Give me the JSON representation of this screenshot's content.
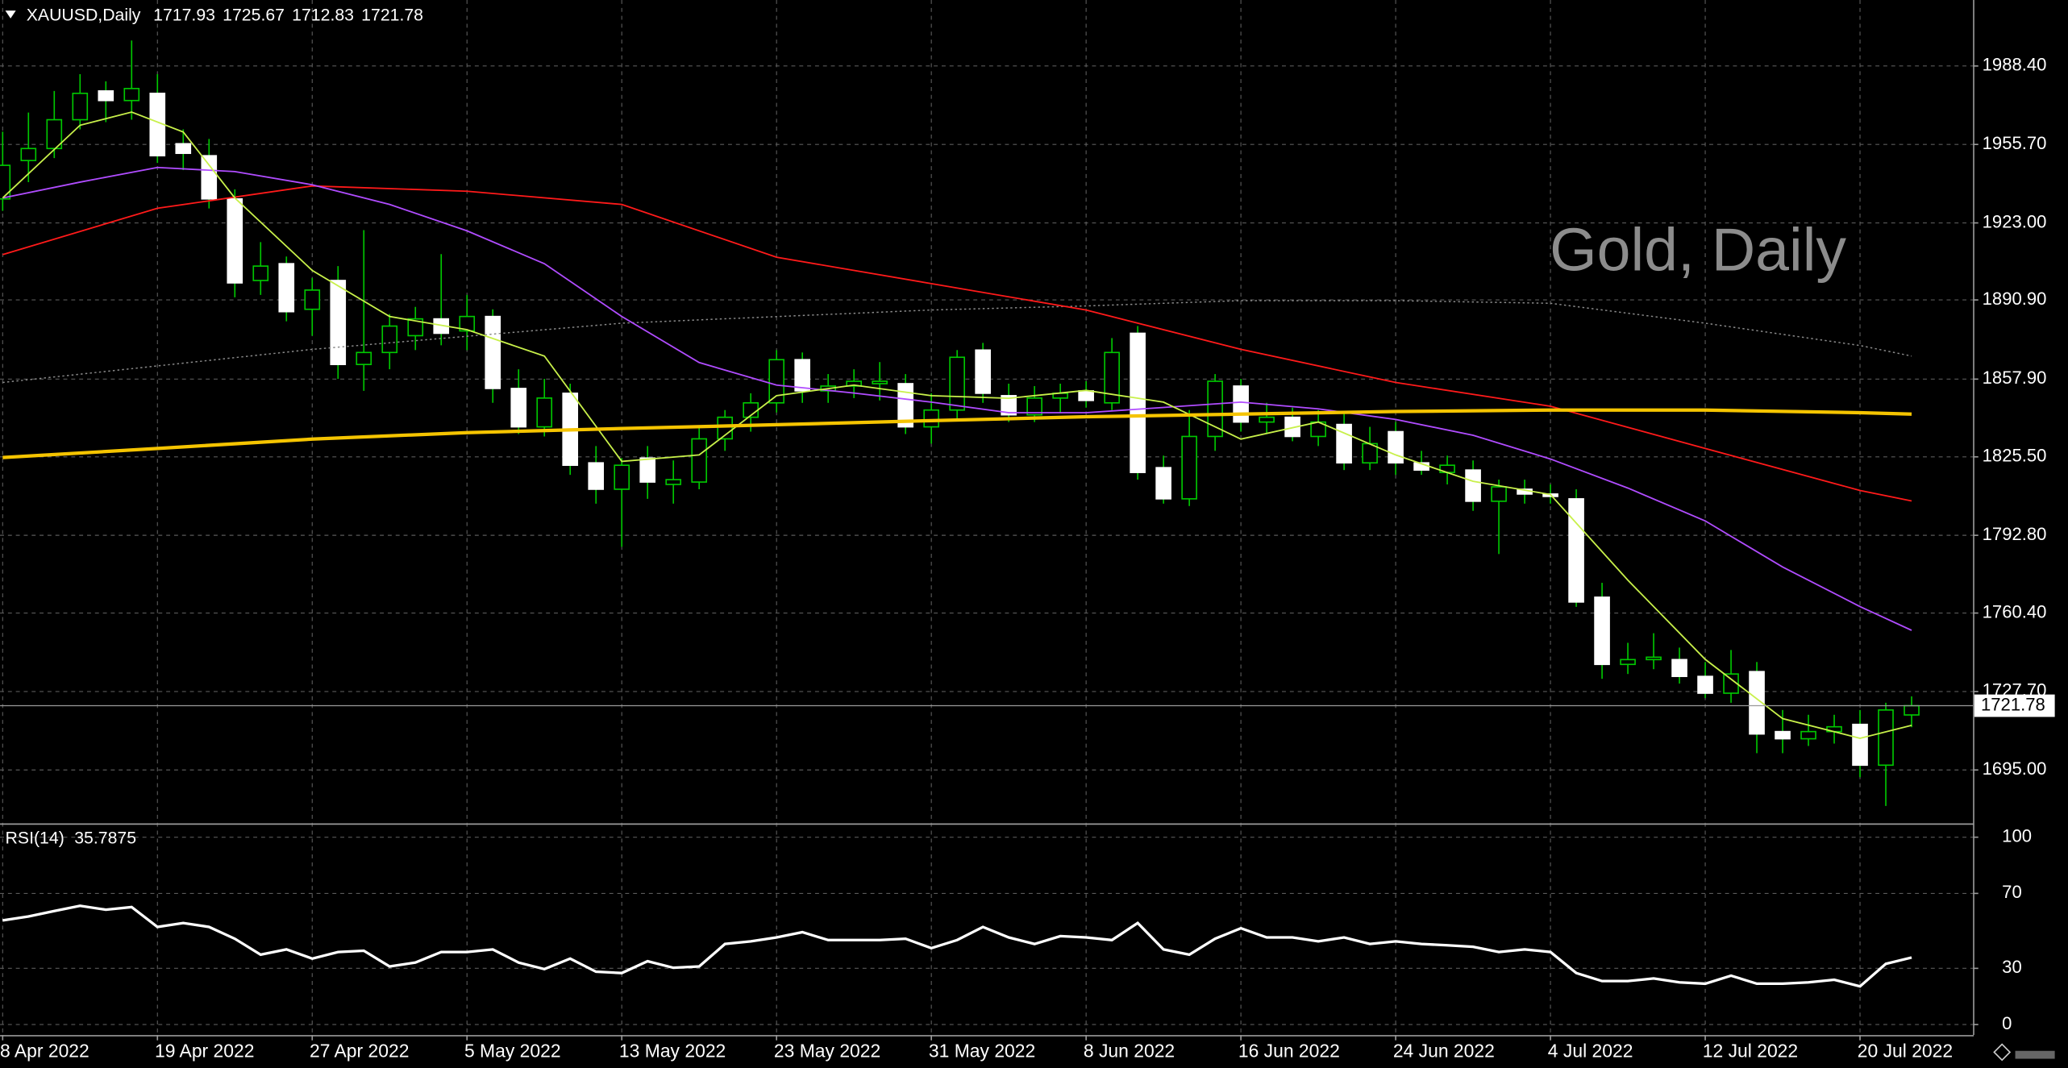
{
  "chart_data": [
    {
      "type": "candlestick",
      "symbol": "XAUUSD,Daily",
      "watermark": "Gold, Daily",
      "categories": [
        "8 Apr 2022",
        null,
        null,
        null,
        null,
        null,
        "19 Apr 2022",
        null,
        null,
        null,
        null,
        null,
        "27 Apr 2022",
        null,
        null,
        null,
        null,
        null,
        "5 May 2022",
        null,
        null,
        null,
        null,
        null,
        "13 May 2022",
        null,
        null,
        null,
        null,
        null,
        "23 May 2022",
        null,
        null,
        null,
        null,
        null,
        "31 May 2022",
        null,
        null,
        null,
        null,
        null,
        "8 Jun 2022",
        null,
        null,
        null,
        null,
        null,
        "16 Jun 2022",
        null,
        null,
        null,
        null,
        null,
        "24 Jun 2022",
        null,
        null,
        null,
        null,
        null,
        "4 Jul 2022",
        null,
        null,
        null,
        null,
        null,
        "12 Jul 2022",
        null,
        null,
        null,
        null,
        null,
        "20 Jul 2022",
        null,
        null
      ],
      "open": [
        1933,
        1949,
        1954,
        1966,
        1978,
        1974,
        1977,
        1956,
        1951,
        1933,
        1899,
        1906,
        1887,
        1899,
        1864,
        1869,
        1876,
        1883,
        1878,
        1884,
        1854,
        1838,
        1852,
        1823,
        1812,
        1825,
        1814,
        1815,
        1833,
        1842,
        1848,
        1866,
        1853,
        1855,
        1856,
        1856,
        1838,
        1845,
        1870,
        1851,
        1843,
        1850,
        1853,
        1848,
        1877,
        1821,
        1808,
        1834,
        1855,
        1840,
        1842,
        1834,
        1839,
        1823,
        1836,
        1823,
        1819,
        1820,
        1807,
        1812,
        1810,
        1808,
        1767,
        1739,
        1741,
        1741,
        1734,
        1727,
        1736,
        1711,
        1708,
        1711,
        1714,
        1697,
        1717.93
      ],
      "high": [
        1961,
        1969,
        1978,
        1985,
        1982,
        1999,
        1985,
        1962,
        1958,
        1937,
        1915,
        1909,
        1900,
        1905,
        1920,
        1885,
        1888,
        1910,
        1893,
        1887,
        1862,
        1858,
        1856,
        1830,
        1825,
        1830,
        1824,
        1838,
        1845,
        1852,
        1870,
        1869,
        1860,
        1862,
        1865,
        1860,
        1852,
        1870,
        1873,
        1856,
        1855,
        1856,
        1857,
        1875,
        1880,
        1826,
        1845,
        1860,
        1858,
        1848,
        1846,
        1845,
        1844,
        1838,
        1840,
        1828,
        1826,
        1824,
        1816,
        1816,
        1814,
        1812,
        1773,
        1748,
        1752,
        1746,
        1740,
        1745,
        1740,
        1720,
        1718,
        1718,
        1720,
        1723,
        1725.67
      ],
      "low": [
        1928,
        1940,
        1950,
        1962,
        1965,
        1966,
        1948,
        1945,
        1929,
        1892,
        1893,
        1882,
        1876,
        1858,
        1853,
        1862,
        1870,
        1872,
        1870,
        1848,
        1835,
        1834,
        1818,
        1806,
        1788,
        1808,
        1806,
        1812,
        1828,
        1836,
        1844,
        1848,
        1848,
        1850,
        1849,
        1835,
        1831,
        1841,
        1848,
        1840,
        1840,
        1844,
        1846,
        1845,
        1816,
        1806,
        1805,
        1828,
        1836,
        1835,
        1832,
        1830,
        1820,
        1820,
        1818,
        1818,
        1814,
        1803,
        1785,
        1806,
        1806,
        1763,
        1733,
        1735,
        1737,
        1731,
        1725,
        1723,
        1702,
        1702,
        1705,
        1706,
        1692,
        1680,
        1712.83
      ],
      "close": [
        1947,
        1954,
        1966,
        1977,
        1974,
        1979,
        1951,
        1952,
        1933,
        1898,
        1905,
        1886,
        1895,
        1864,
        1869,
        1880,
        1883,
        1877,
        1884,
        1854,
        1838,
        1850,
        1822,
        1812,
        1822,
        1815,
        1816,
        1833,
        1842,
        1848,
        1866,
        1853,
        1855,
        1857,
        1857,
        1838,
        1845,
        1867,
        1852,
        1843,
        1850,
        1852,
        1849,
        1869,
        1819,
        1808,
        1834,
        1857,
        1840,
        1842,
        1834,
        1840,
        1823,
        1831,
        1823,
        1820,
        1822,
        1807,
        1813,
        1810,
        1809,
        1765,
        1739,
        1741,
        1742,
        1734,
        1727,
        1735,
        1710,
        1708,
        1711,
        1713,
        1697,
        1720,
        1721.78
      ],
      "up_color": "#00c800",
      "down_color": "#ffffff",
      "ylim": [
        1673.0,
        2015.9
      ],
      "yticks": [
        {
          "value": 1988.4,
          "label": "1988.40"
        },
        {
          "value": 1955.7,
          "label": "1955.70"
        },
        {
          "value": 1923.0,
          "label": "1923.00"
        },
        {
          "value": 1890.9,
          "label": "1890.90"
        },
        {
          "value": 1857.9,
          "label": "1857.90"
        },
        {
          "value": 1825.5,
          "label": "1825.50"
        },
        {
          "value": 1792.8,
          "label": "1792.80"
        },
        {
          "value": 1760.4,
          "label": "1760.40"
        },
        {
          "value": 1727.7,
          "label": "1727.70"
        },
        {
          "value": 1695.0,
          "label": "1695.00"
        }
      ],
      "grid": true,
      "overlays": [
        {
          "color": "#8a8a8a",
          "line_style": "dotted",
          "x": [
            0,
            12,
            24,
            36,
            42,
            48,
            54,
            60,
            66,
            72,
            74
          ],
          "values": [
            1856.5,
            1870.3,
            1881.2,
            1886.7,
            1888.4,
            1890.6,
            1890.6,
            1889.5,
            1881.2,
            1871.9,
            1867.5
          ]
        },
        {
          "color": "#ff1a1a",
          "line_style": "solid",
          "x": [
            0,
            6,
            12,
            18,
            24,
            30,
            36,
            42,
            48,
            54,
            60,
            66,
            72,
            74
          ],
          "values": [
            1909.8,
            1929.1,
            1938.4,
            1936.2,
            1930.7,
            1908.7,
            1897.7,
            1886.7,
            1870.3,
            1856.5,
            1846.6,
            1829.0,
            1811.5,
            1807.1
          ]
        },
        {
          "color": "#b04cff",
          "line_style": "solid",
          "x": [
            0,
            3,
            6,
            9,
            12,
            15,
            18,
            21,
            24,
            27,
            30,
            33,
            36,
            39,
            42,
            45,
            48,
            51,
            54,
            57,
            60,
            63,
            66,
            69,
            72,
            74
          ],
          "values": [
            1933.4,
            1940.0,
            1946.1,
            1944.4,
            1938.9,
            1930.7,
            1919.7,
            1906.0,
            1884.0,
            1864.8,
            1855.4,
            1852.1,
            1848.3,
            1843.9,
            1843.9,
            1846.1,
            1848.3,
            1845.5,
            1841.1,
            1834.5,
            1824.6,
            1812.5,
            1798.8,
            1779.6,
            1763.1,
            1753.2
          ]
        },
        {
          "color": "#c8f04a",
          "line_style": "solid",
          "x": [
            0,
            3,
            5,
            7,
            9,
            12,
            15,
            18,
            21,
            24,
            27,
            30,
            33,
            36,
            39,
            42,
            45,
            48,
            51,
            54,
            57,
            60,
            63,
            66,
            69,
            72,
            74
          ],
          "values": [
            1933.4,
            1963.7,
            1969.2,
            1960.9,
            1933.4,
            1903.2,
            1884.0,
            1878.5,
            1867.5,
            1823.6,
            1826.3,
            1851.0,
            1855.4,
            1851.0,
            1849.9,
            1853.2,
            1848.3,
            1832.9,
            1840.0,
            1826.3,
            1815.3,
            1809.8,
            1774.1,
            1741.1,
            1716.4,
            1708.2,
            1713.6
          ]
        },
        {
          "color": "#f5c400",
          "line_style": "bold",
          "x": [
            0,
            6,
            12,
            18,
            24,
            30,
            36,
            42,
            48,
            54,
            60,
            66,
            72,
            74
          ],
          "values": [
            1825.2,
            1829.0,
            1832.9,
            1835.6,
            1837.3,
            1838.9,
            1840.6,
            1842.2,
            1843.3,
            1844.4,
            1845.0,
            1845.0,
            1843.9,
            1843.3
          ]
        }
      ]
    },
    {
      "type": "line",
      "title": "RSI(14)",
      "color": "#ffffff",
      "values": [
        55.6,
        57.7,
        60.6,
        63.4,
        61.3,
        62.7,
        52.1,
        54.2,
        52.1,
        45.8,
        37.3,
        40.1,
        35.2,
        38.7,
        39.4,
        31.0,
        33.1,
        38.7,
        38.7,
        40.1,
        33.1,
        29.6,
        35.2,
        28.2,
        27.5,
        33.8,
        30.3,
        31.0,
        43.0,
        44.4,
        46.5,
        49.3,
        45.1,
        45.1,
        45.1,
        45.8,
        40.8,
        45.1,
        52.1,
        46.5,
        43.0,
        47.2,
        46.5,
        45.1,
        54.2,
        40.1,
        37.3,
        45.8,
        51.4,
        46.5,
        46.5,
        44.4,
        46.5,
        43.0,
        44.4,
        43.0,
        42.3,
        41.5,
        38.7,
        40.1,
        38.7,
        27.5,
        23.2,
        23.2,
        24.6,
        22.5,
        21.8,
        26.1,
        21.8,
        21.8,
        22.5,
        23.9,
        20.4,
        32.4,
        35.7875
      ],
      "ylim": [
        -5.6,
        106.3
      ],
      "yticks": [
        100,
        70,
        30,
        0
      ],
      "grid": true
    }
  ]
}
